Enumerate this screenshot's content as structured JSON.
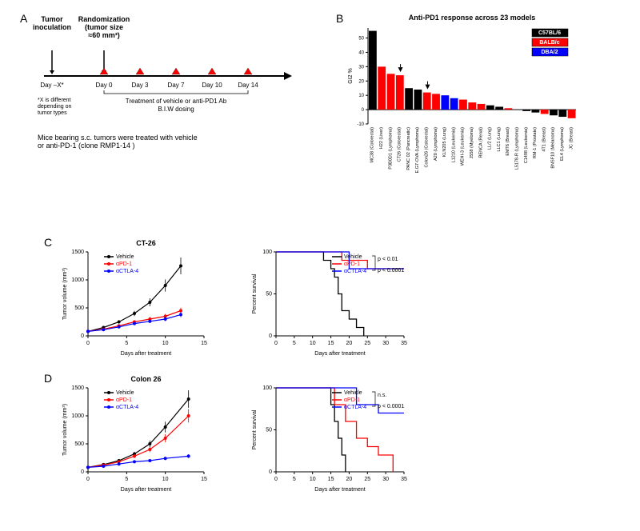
{
  "panelA": {
    "label": "A",
    "events": [
      {
        "text": "Tumor\ninoculation",
        "x": 30
      },
      {
        "text": "Randomization\n(tumor size\n≈60 mm³)",
        "x": 95
      }
    ],
    "day_labels": [
      "Day –X*",
      "Day 0",
      "Day 3",
      "Day 7",
      "Day 10",
      "Day 14"
    ],
    "day_x": [
      30,
      95,
      140,
      185,
      230,
      275
    ],
    "treatment_text": "Treatment of vehicle or anti-PD1 Ab\nB.I.W dosing",
    "footnote": "*X is different\ndepending on\ntumor types",
    "caption": "Mice bearing s.c. tumors were treated with vehicle\nor anti-PD-1 (clone RMP1-14 )"
  },
  "panelB": {
    "label": "B",
    "title": "Anti-PD1 response across 23 models",
    "ylabel": "GI2 %",
    "legend": [
      {
        "label": "C57BL/6",
        "color": "#000000"
      },
      {
        "label": "BALB/c",
        "color": "#ff0000"
      },
      {
        "label": "DBA/2",
        "color": "#0000ff"
      }
    ],
    "models": [
      {
        "name": "MC38 (Colorectal)",
        "value": 55,
        "color": "#000000"
      },
      {
        "name": "H22 (Liver)",
        "value": 30,
        "color": "#ff0000"
      },
      {
        "name": "P3B0D1 (Lymphoma)",
        "value": 25,
        "color": "#ff0000"
      },
      {
        "name": "CT26 (Colorectal)",
        "value": 24,
        "color": "#ff0000",
        "arrow": true
      },
      {
        "name": "PANC 02 (Pancreatic)",
        "value": 15,
        "color": "#000000"
      },
      {
        "name": "E.G7-OVA (Lymphoma)",
        "value": 14,
        "color": "#000000"
      },
      {
        "name": "Colon26 (Colorectal)",
        "value": 12,
        "color": "#ff0000",
        "arrow": true
      },
      {
        "name": "A20 (Lymphoma)",
        "value": 11,
        "color": "#ff0000"
      },
      {
        "name": "KLN205 (Lung)",
        "value": 10,
        "color": "#0000ff"
      },
      {
        "name": "L1210 (Leukemia)",
        "value": 8,
        "color": "#0000ff"
      },
      {
        "name": "WEHI-3 (Leukemia)",
        "value": 7,
        "color": "#ff0000"
      },
      {
        "name": "J558 (Myeloma)",
        "value": 5,
        "color": "#ff0000"
      },
      {
        "name": "RENCA (Renal)",
        "value": 4,
        "color": "#ff0000"
      },
      {
        "name": "LL/2 (Lung)",
        "value": 3,
        "color": "#000000"
      },
      {
        "name": "LLC1 (Lung)",
        "value": 2,
        "color": "#000000"
      },
      {
        "name": "EMT6 (Breast)",
        "value": 1,
        "color": "#ff0000"
      },
      {
        "name": "L5178-R (Lymphoma)",
        "value": 0,
        "color": "#0000ff"
      },
      {
        "name": "C1498 (Leukemia)",
        "value": -1,
        "color": "#000000"
      },
      {
        "name": "RM-1 (Prostate)",
        "value": -2,
        "color": "#000000"
      },
      {
        "name": "4T1 (Breast)",
        "value": -3,
        "color": "#ff0000"
      },
      {
        "name": "BNSF10 (Melanoma)",
        "value": -4,
        "color": "#000000"
      },
      {
        "name": "EL4 (Lymphoma)",
        "value": -5,
        "color": "#000000"
      },
      {
        "name": "JC (Breast)",
        "value": -6,
        "color": "#ff0000"
      }
    ],
    "yticks": [
      -10,
      0,
      10,
      20,
      30,
      40,
      50
    ]
  },
  "panelC": {
    "label": "C",
    "title": "CT-26",
    "growth": {
      "ylabel": "Tumor volume (mm³)",
      "xlabel": "Days after treatment",
      "xticks": [
        0,
        5,
        10,
        15
      ],
      "yticks": [
        0,
        500,
        1000,
        1500
      ],
      "series": [
        {
          "label": "Vehicle",
          "color": "#000000",
          "x": [
            0,
            2,
            4,
            6,
            8,
            10,
            12
          ],
          "y": [
            80,
            150,
            250,
            400,
            600,
            900,
            1250
          ]
        },
        {
          "label": "αPD-1",
          "color": "#ff0000",
          "x": [
            0,
            2,
            4,
            6,
            8,
            10,
            12
          ],
          "y": [
            80,
            120,
            180,
            250,
            300,
            350,
            450
          ]
        },
        {
          "label": "αCTLA-4",
          "color": "#0000ff",
          "x": [
            0,
            2,
            4,
            6,
            8,
            10,
            12
          ],
          "y": [
            80,
            110,
            160,
            220,
            260,
            300,
            380
          ]
        }
      ]
    },
    "survival": {
      "ylabel": "Percent survival",
      "xlabel": "Days after treatment",
      "xticks": [
        0,
        5,
        10,
        15,
        20,
        25,
        30,
        35
      ],
      "yticks": [
        0,
        50,
        100
      ],
      "series": [
        {
          "label": "Vehicle",
          "color": "#000000",
          "steps": [
            [
              0,
              100
            ],
            [
              12,
              100
            ],
            [
              13,
              90
            ],
            [
              15,
              80
            ],
            [
              16,
              70
            ],
            [
              17,
              50
            ],
            [
              18,
              30
            ],
            [
              20,
              20
            ],
            [
              22,
              10
            ],
            [
              24,
              0
            ]
          ]
        },
        {
          "label": "αPD-1",
          "color": "#ff0000",
          "steps": [
            [
              0,
              100
            ],
            [
              17,
              100
            ],
            [
              18,
              90
            ],
            [
              24,
              90
            ],
            [
              25,
              80
            ],
            [
              35,
              80
            ]
          ]
        },
        {
          "label": "αCTLA-4",
          "color": "#0000ff",
          "steps": [
            [
              0,
              100
            ],
            [
              19,
              100
            ],
            [
              20,
              80
            ],
            [
              35,
              80
            ]
          ]
        }
      ],
      "pvals": [
        {
          "text": "p < 0.01",
          "top": true
        },
        {
          "text": "p < 0.0001",
          "top": false
        }
      ]
    }
  },
  "panelD": {
    "label": "D",
    "title": "Colon 26",
    "growth": {
      "ylabel": "Tumor volume (mm³)",
      "xlabel": "Days after treatment",
      "xticks": [
        0,
        5,
        10,
        15
      ],
      "yticks": [
        0,
        500,
        1000,
        1500
      ],
      "series": [
        {
          "label": "Vehicle",
          "color": "#000000",
          "x": [
            0,
            2,
            4,
            6,
            8,
            10,
            13
          ],
          "y": [
            80,
            130,
            200,
            320,
            500,
            800,
            1300
          ]
        },
        {
          "label": "αPD-1",
          "color": "#ff0000",
          "x": [
            0,
            2,
            4,
            6,
            8,
            10,
            13
          ],
          "y": [
            80,
            120,
            180,
            280,
            400,
            600,
            1000
          ]
        },
        {
          "label": "αCTLA-4",
          "color": "#0000ff",
          "x": [
            0,
            2,
            4,
            6,
            8,
            10,
            13
          ],
          "y": [
            80,
            100,
            140,
            180,
            200,
            240,
            280
          ]
        }
      ]
    },
    "survival": {
      "ylabel": "Percent survival",
      "xlabel": "Days after treatment",
      "xticks": [
        0,
        5,
        10,
        15,
        20,
        25,
        30,
        35
      ],
      "yticks": [
        0,
        50,
        100
      ],
      "series": [
        {
          "label": "Vehicle",
          "color": "#000000",
          "steps": [
            [
              0,
              100
            ],
            [
              14,
              100
            ],
            [
              15,
              80
            ],
            [
              16,
              60
            ],
            [
              17,
              40
            ],
            [
              18,
              20
            ],
            [
              19,
              0
            ]
          ]
        },
        {
          "label": "αPD-1",
          "color": "#ff0000",
          "steps": [
            [
              0,
              100
            ],
            [
              14,
              100
            ],
            [
              16,
              80
            ],
            [
              19,
              60
            ],
            [
              22,
              40
            ],
            [
              25,
              30
            ],
            [
              28,
              20
            ],
            [
              32,
              0
            ]
          ]
        },
        {
          "label": "αCTLA-4",
          "color": "#0000ff",
          "steps": [
            [
              0,
              100
            ],
            [
              20,
              100
            ],
            [
              22,
              80
            ],
            [
              28,
              70
            ],
            [
              35,
              70
            ]
          ]
        }
      ],
      "pvals": [
        {
          "text": "n.s.",
          "top": true
        },
        {
          "text": "p < 0.0001",
          "top": false
        }
      ]
    }
  }
}
